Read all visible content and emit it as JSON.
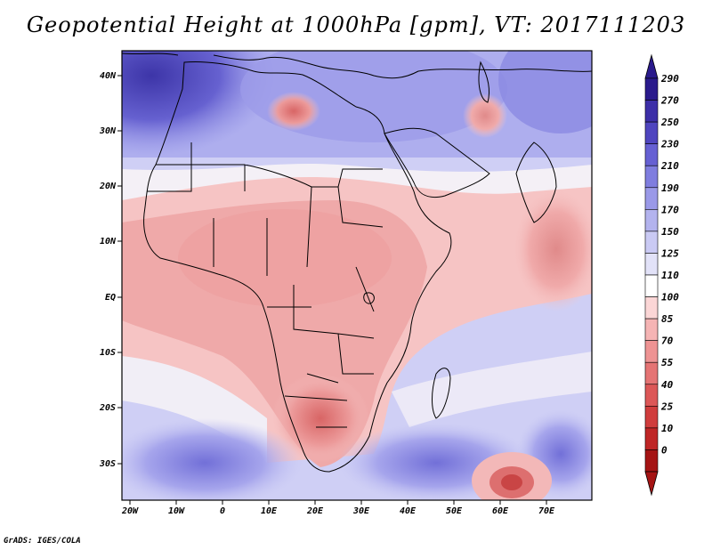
{
  "title": "Geopotential Height at 1000hPa [gpm], VT: 2017111203",
  "credit": "GrADS: IGES/COLA",
  "map": {
    "lat_labels": [
      "40N",
      "30N",
      "20N",
      "10N",
      "EQ",
      "10S",
      "20S",
      "30S"
    ],
    "lon_labels": [
      "20W",
      "10W",
      "0",
      "10E",
      "20E",
      "30E",
      "40E",
      "50E",
      "60E",
      "70E"
    ]
  },
  "colorbar": {
    "levels": [
      "290",
      "270",
      "250",
      "230",
      "210",
      "190",
      "170",
      "150",
      "125",
      "110",
      "100",
      "85",
      "70",
      "55",
      "40",
      "25",
      "10",
      "0"
    ],
    "colors": [
      "#2a1a8c",
      "#3d2fa8",
      "#4f45bf",
      "#6660d3",
      "#7f7ddf",
      "#9a99e8",
      "#b3b3ee",
      "#cacaf4",
      "#e2e2f8",
      "#ffffff",
      "#fbd6d6",
      "#f5b4b4",
      "#ee9393",
      "#e57474",
      "#dc5757",
      "#d03d3d",
      "#bf2626",
      "#a51414"
    ]
  }
}
